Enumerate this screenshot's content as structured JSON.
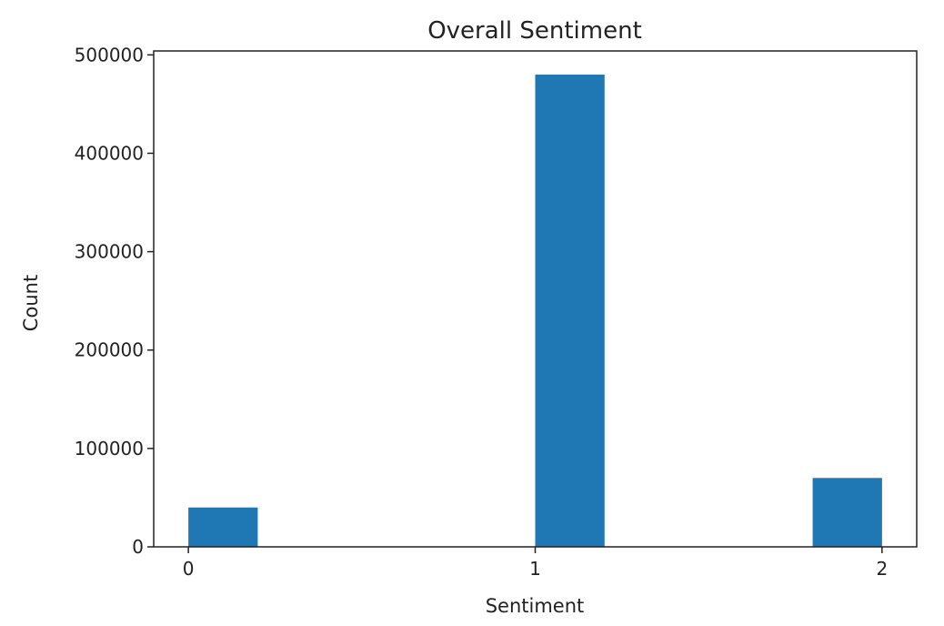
{
  "chart_data": {
    "type": "bar",
    "title": "Overall Sentiment",
    "xlabel": "Sentiment",
    "ylabel": "Count",
    "bins": [
      {
        "start": 0.0,
        "end": 0.2,
        "value": 40000
      },
      {
        "start": 1.0,
        "end": 1.2,
        "value": 480000
      },
      {
        "start": 1.8,
        "end": 2.0,
        "value": 70000
      }
    ],
    "xticks": [
      0,
      1,
      2
    ],
    "yticks": [
      0,
      100000,
      200000,
      300000,
      400000,
      500000
    ],
    "xlim": [
      -0.1,
      2.1
    ],
    "ylim": [
      0,
      504000
    ],
    "grid": false,
    "legend": false,
    "bar_color": "#1f77b4"
  }
}
